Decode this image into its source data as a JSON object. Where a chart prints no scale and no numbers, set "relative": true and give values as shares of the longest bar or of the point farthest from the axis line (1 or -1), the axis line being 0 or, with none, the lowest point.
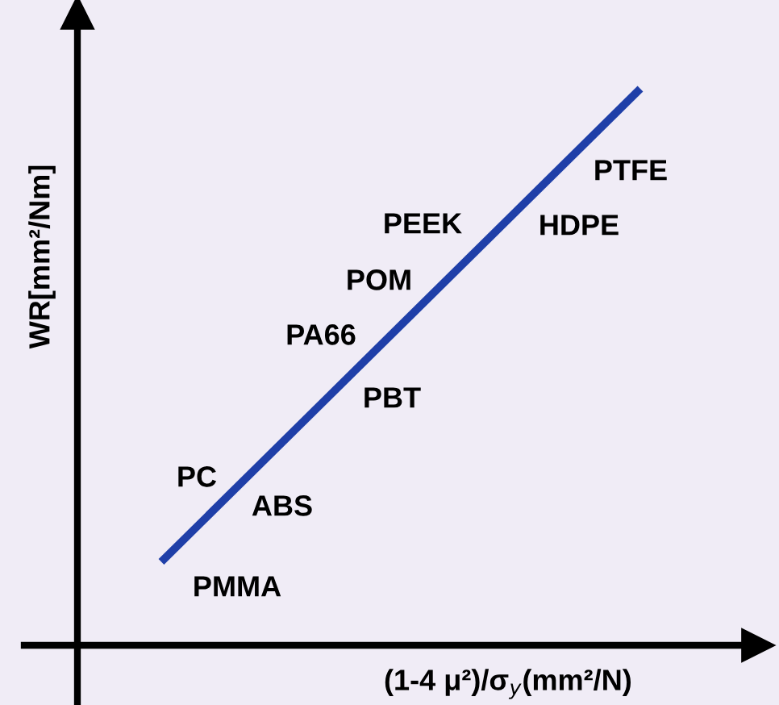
{
  "chart_data": {
    "type": "line",
    "relative": true,
    "xlabel": "(1-4 μ²)/σ$_{y}$(mm²/N)",
    "ylabel": "WR[mm²/Nm]",
    "categories": [
      null,
      null
    ],
    "series": [
      {
        "color": "#1f3fa8",
        "values": [
          0.15,
          1
        ]
      }
    ],
    "annotations": [
      "PTFE",
      "HDPE",
      "PEEK",
      "POM",
      "PA66",
      "PBT",
      "PC",
      "ABS",
      "PMMA"
    ],
    "legend": false,
    "marker": "none",
    "line_style": "solid"
  }
}
